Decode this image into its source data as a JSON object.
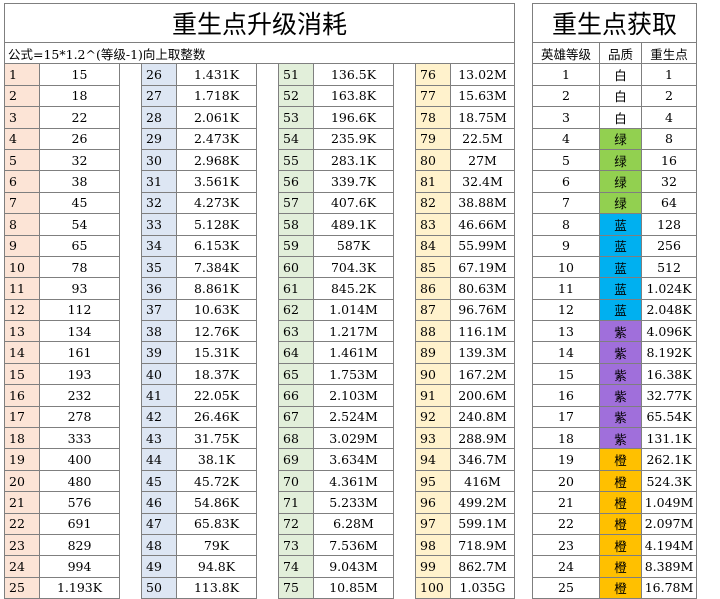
{
  "left_title": "重生点升级消耗",
  "formula": "公式=15*1.2^(等级-1)向上取整数",
  "right_title": "重生点获取",
  "headers": [
    "英雄等级",
    "品质",
    "重生点"
  ],
  "levels": [
    [
      [
        "1",
        "15"
      ],
      [
        "26",
        "1.431K"
      ],
      [
        "51",
        "136.5K"
      ],
      [
        "76",
        "13.02M"
      ]
    ],
    [
      [
        "2",
        "18"
      ],
      [
        "27",
        "1.718K"
      ],
      [
        "52",
        "163.8K"
      ],
      [
        "77",
        "15.63M"
      ]
    ],
    [
      [
        "3",
        "22"
      ],
      [
        "28",
        "2.061K"
      ],
      [
        "53",
        "196.6K"
      ],
      [
        "78",
        "18.75M"
      ]
    ],
    [
      [
        "4",
        "26"
      ],
      [
        "29",
        "2.473K"
      ],
      [
        "54",
        "235.9K"
      ],
      [
        "79",
        "22.5M"
      ]
    ],
    [
      [
        "5",
        "32"
      ],
      [
        "30",
        "2.968K"
      ],
      [
        "55",
        "283.1K"
      ],
      [
        "80",
        "27M"
      ]
    ],
    [
      [
        "6",
        "38"
      ],
      [
        "31",
        "3.561K"
      ],
      [
        "56",
        "339.7K"
      ],
      [
        "81",
        "32.4M"
      ]
    ],
    [
      [
        "7",
        "45"
      ],
      [
        "32",
        "4.273K"
      ],
      [
        "57",
        "407.6K"
      ],
      [
        "82",
        "38.88M"
      ]
    ],
    [
      [
        "8",
        "54"
      ],
      [
        "33",
        "5.128K"
      ],
      [
        "58",
        "489.1K"
      ],
      [
        "83",
        "46.66M"
      ]
    ],
    [
      [
        "9",
        "65"
      ],
      [
        "34",
        "6.153K"
      ],
      [
        "59",
        "587K"
      ],
      [
        "84",
        "55.99M"
      ]
    ],
    [
      [
        "10",
        "78"
      ],
      [
        "35",
        "7.384K"
      ],
      [
        "60",
        "704.3K"
      ],
      [
        "85",
        "67.19M"
      ]
    ],
    [
      [
        "11",
        "93"
      ],
      [
        "36",
        "8.861K"
      ],
      [
        "61",
        "845.2K"
      ],
      [
        "86",
        "80.63M"
      ]
    ],
    [
      [
        "12",
        "112"
      ],
      [
        "37",
        "10.63K"
      ],
      [
        "62",
        "1.014M"
      ],
      [
        "87",
        "96.76M"
      ]
    ],
    [
      [
        "13",
        "134"
      ],
      [
        "38",
        "12.76K"
      ],
      [
        "63",
        "1.217M"
      ],
      [
        "88",
        "116.1M"
      ]
    ],
    [
      [
        "14",
        "161"
      ],
      [
        "39",
        "15.31K"
      ],
      [
        "64",
        "1.461M"
      ],
      [
        "89",
        "139.3M"
      ]
    ],
    [
      [
        "15",
        "193"
      ],
      [
        "40",
        "18.37K"
      ],
      [
        "65",
        "1.753M"
      ],
      [
        "90",
        "167.2M"
      ]
    ],
    [
      [
        "16",
        "232"
      ],
      [
        "41",
        "22.05K"
      ],
      [
        "66",
        "2.103M"
      ],
      [
        "91",
        "200.6M"
      ]
    ],
    [
      [
        "17",
        "278"
      ],
      [
        "42",
        "26.46K"
      ],
      [
        "67",
        "2.524M"
      ],
      [
        "92",
        "240.8M"
      ]
    ],
    [
      [
        "18",
        "333"
      ],
      [
        "43",
        "31.75K"
      ],
      [
        "68",
        "3.029M"
      ],
      [
        "93",
        "288.9M"
      ]
    ],
    [
      [
        "19",
        "400"
      ],
      [
        "44",
        "38.1K"
      ],
      [
        "69",
        "3.634M"
      ],
      [
        "94",
        "346.7M"
      ]
    ],
    [
      [
        "20",
        "480"
      ],
      [
        "45",
        "45.72K"
      ],
      [
        "70",
        "4.361M"
      ],
      [
        "95",
        "416M"
      ]
    ],
    [
      [
        "21",
        "576"
      ],
      [
        "46",
        "54.86K"
      ],
      [
        "71",
        "5.233M"
      ],
      [
        "96",
        "499.2M"
      ]
    ],
    [
      [
        "22",
        "691"
      ],
      [
        "47",
        "65.83K"
      ],
      [
        "72",
        "6.28M"
      ],
      [
        "97",
        "599.1M"
      ]
    ],
    [
      [
        "23",
        "829"
      ],
      [
        "48",
        "79K"
      ],
      [
        "73",
        "7.536M"
      ],
      [
        "98",
        "718.9M"
      ]
    ],
    [
      [
        "24",
        "994"
      ],
      [
        "49",
        "94.8K"
      ],
      [
        "74",
        "9.043M"
      ],
      [
        "99",
        "862.7M"
      ]
    ],
    [
      [
        "25",
        "1.193K"
      ],
      [
        "50",
        "113.8K"
      ],
      [
        "75",
        "10.85M"
      ],
      [
        "100",
        "1.035G"
      ]
    ]
  ],
  "hero": [
    [
      "1",
      "白",
      "1",
      "white"
    ],
    [
      "2",
      "白",
      "2",
      "white"
    ],
    [
      "3",
      "白",
      "4",
      "white"
    ],
    [
      "4",
      "绿",
      "8",
      "green"
    ],
    [
      "5",
      "绿",
      "16",
      "green"
    ],
    [
      "6",
      "绿",
      "32",
      "green"
    ],
    [
      "7",
      "绿",
      "64",
      "green"
    ],
    [
      "8",
      "蓝",
      "128",
      "blue"
    ],
    [
      "9",
      "蓝",
      "256",
      "blue"
    ],
    [
      "10",
      "蓝",
      "512",
      "blue"
    ],
    [
      "11",
      "蓝",
      "1.024K",
      "blue"
    ],
    [
      "12",
      "蓝",
      "2.048K",
      "blue"
    ],
    [
      "13",
      "紫",
      "4.096K",
      "purple"
    ],
    [
      "14",
      "紫",
      "8.192K",
      "purple"
    ],
    [
      "15",
      "紫",
      "16.38K",
      "purple"
    ],
    [
      "16",
      "紫",
      "32.77K",
      "purple"
    ],
    [
      "17",
      "紫",
      "65.54K",
      "purple"
    ],
    [
      "18",
      "紫",
      "131.1K",
      "purple"
    ],
    [
      "19",
      "橙",
      "262.1K",
      "orange"
    ],
    [
      "20",
      "橙",
      "524.3K",
      "orange"
    ],
    [
      "21",
      "橙",
      "1.049M",
      "orange"
    ],
    [
      "22",
      "橙",
      "2.097M",
      "orange"
    ],
    [
      "23",
      "橙",
      "4.194M",
      "orange"
    ],
    [
      "24",
      "橙",
      "8.389M",
      "orange"
    ],
    [
      "25",
      "橙",
      "16.78M",
      "orange"
    ]
  ],
  "colors": {
    "band_orange": "#fce4d6",
    "band_blue": "#dde6f3",
    "band_green": "#e2efda",
    "band_yellow": "#fff2cc",
    "quality_white": "#ffffff",
    "quality_green": "#92d050",
    "quality_blue": "#00b0f0",
    "quality_purple": "#a06fdb",
    "quality_orange": "#ffc000"
  }
}
